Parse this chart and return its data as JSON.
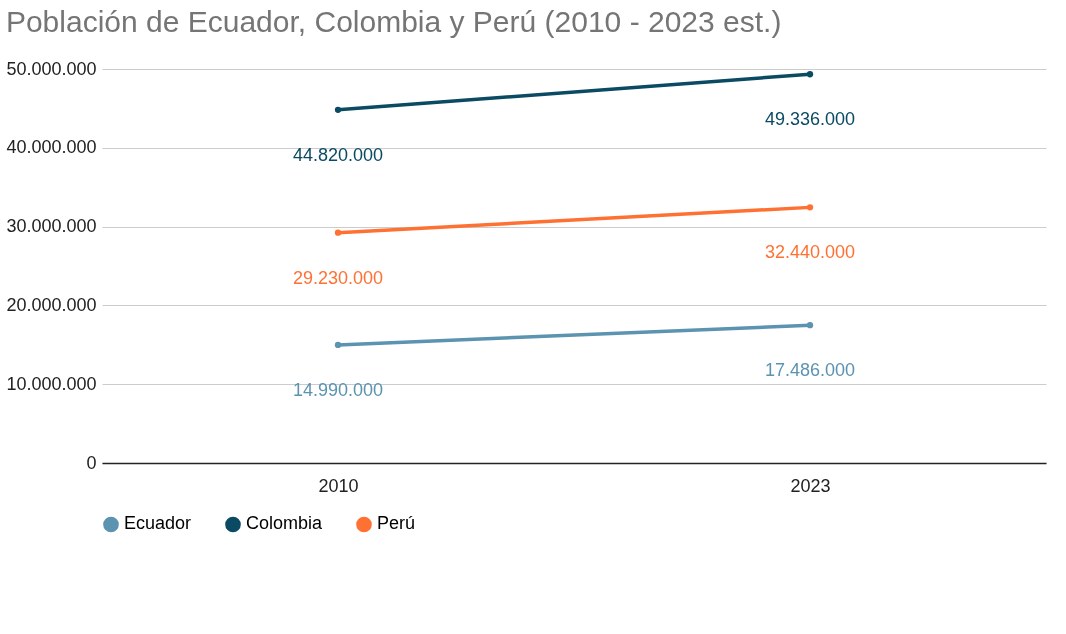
{
  "chart_data": {
    "type": "line",
    "title": "Población de Ecuador, Colombia y Perú (2010 - 2023 est.)",
    "categories": [
      "2010",
      "2023"
    ],
    "series": [
      {
        "name": "Ecuador",
        "color": "#5b93b0",
        "values": [
          14990000,
          17486000
        ],
        "value_labels": [
          "14.990.000",
          "17.486.000"
        ]
      },
      {
        "name": "Colombia",
        "color": "#0b4a63",
        "values": [
          44820000,
          49336000
        ],
        "value_labels": [
          "44.820.000",
          "49.336.000"
        ]
      },
      {
        "name": "Perú",
        "color": "#ff7133",
        "values": [
          29230000,
          32440000
        ],
        "value_labels": [
          "29.230.000",
          "32.440.000"
        ]
      }
    ],
    "ylim": [
      0,
      50000000
    ],
    "yticks": [
      0,
      {
        "value": 10000000,
        "label": "10.000.000"
      },
      {
        "value": 20000000,
        "label": "20.000.000"
      },
      {
        "value": 30000000,
        "label": "30.000.000"
      },
      {
        "value": 40000000,
        "label": "40.000.000"
      },
      {
        "value": 50000000,
        "label": "50.000.000"
      }
    ],
    "grid": "y",
    "legend": "bottom",
    "marker": "circle",
    "line_style": "solid"
  }
}
